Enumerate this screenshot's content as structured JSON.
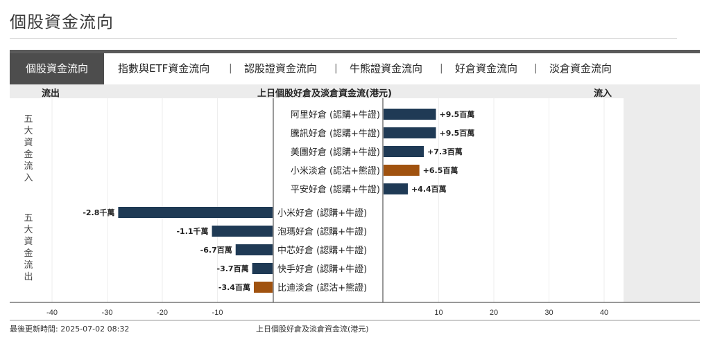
{
  "page": {
    "title": "個股資金流向"
  },
  "tabs": [
    {
      "label": "個股資金流向",
      "active": true
    },
    {
      "label": "指數與ETF資金流向",
      "active": false
    },
    {
      "label": "認股證資金流向",
      "active": false
    },
    {
      "label": "牛熊證資金流向",
      "active": false
    },
    {
      "label": "好倉資金流向",
      "active": false
    },
    {
      "label": "淡倉資金流向",
      "active": false
    }
  ],
  "tab_separator": "|",
  "chart_header": {
    "outflow_label": "流出",
    "title": "上日個股好倉及淡倉資金流(港元)",
    "inflow_label": "流入"
  },
  "group_labels": {
    "inflow": [
      "五",
      "大",
      "資",
      "金",
      "流",
      "入"
    ],
    "outflow": [
      "五",
      "大",
      "資",
      "金",
      "流",
      "出"
    ]
  },
  "colors": {
    "bull": "#1f3a55",
    "bear": "#a0520f",
    "tab_active_bg": "#4d4d4d",
    "header_bg": "#ececec"
  },
  "chart_data": {
    "type": "bar",
    "orientation": "horizontal",
    "unit_note": "values in 百萬 (millions HKD)",
    "xlim": [
      -40,
      40
    ],
    "xticks": [
      -40,
      -30,
      -20,
      -10,
      10,
      20,
      30,
      40
    ],
    "inflow_top5": [
      {
        "label": "阿里好倉 (認購+牛證)",
        "value": 9.5,
        "value_label": "+9.5百萬",
        "kind": "bull"
      },
      {
        "label": "騰訊好倉 (認購+牛證)",
        "value": 9.5,
        "value_label": "+9.5百萬",
        "kind": "bull"
      },
      {
        "label": "美團好倉 (認購+牛證)",
        "value": 7.3,
        "value_label": "+7.3百萬",
        "kind": "bull"
      },
      {
        "label": "小米淡倉 (認沽+熊證)",
        "value": 6.5,
        "value_label": "+6.5百萬",
        "kind": "bear"
      },
      {
        "label": "平安好倉 (認購+牛證)",
        "value": 4.4,
        "value_label": "+4.4百萬",
        "kind": "bull"
      }
    ],
    "outflow_top5": [
      {
        "label": "小米好倉 (認購+牛證)",
        "value": -28,
        "value_label": "-2.8千萬",
        "kind": "bull"
      },
      {
        "label": "泡瑪好倉 (認購+牛證)",
        "value": -11,
        "value_label": "-1.1千萬",
        "kind": "bull"
      },
      {
        "label": "中芯好倉 (認購+牛證)",
        "value": -6.7,
        "value_label": "-6.7百萬",
        "kind": "bull"
      },
      {
        "label": "快手好倉 (認購+牛證)",
        "value": -3.7,
        "value_label": "-3.7百萬",
        "kind": "bull"
      },
      {
        "label": "比迪淡倉 (認沽+熊證)",
        "value": -3.4,
        "value_label": "-3.4百萬",
        "kind": "bear"
      }
    ]
  },
  "footer": {
    "last_update": "最後更新時間: 2025-07-02 08:32",
    "caption": "上日個股好倉及淡倉資金流(港元)"
  }
}
